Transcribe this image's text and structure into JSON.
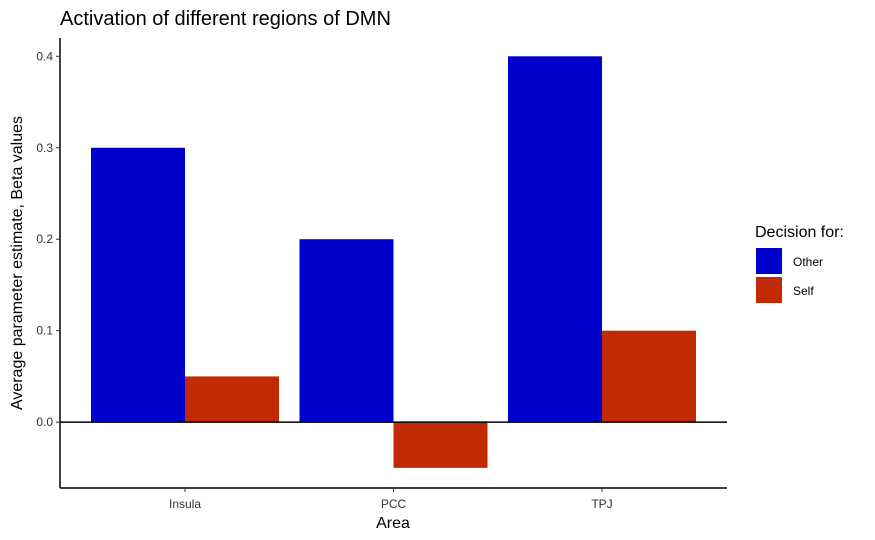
{
  "chart_data": {
    "type": "bar",
    "title": "Activation of different regions of DMN",
    "xlabel": "Area",
    "ylabel": "Average parameter estimate, Beta values",
    "categories": [
      "Insula",
      "PCC",
      "TPJ"
    ],
    "series": [
      {
        "name": "Other",
        "values": [
          0.3,
          0.2,
          0.4
        ]
      },
      {
        "name": "Self",
        "values": [
          0.05,
          -0.05,
          0.1
        ]
      }
    ],
    "ylim": [
      -0.072,
      0.42
    ],
    "yticks": [
      0.0,
      0.1,
      0.2,
      0.3,
      0.4
    ],
    "ytick_labels": [
      "0.0",
      "0.1",
      "0.2",
      "0.3",
      "0.4"
    ],
    "legend_title": "Decision for:",
    "legend_position": "right",
    "zero_line": true,
    "grid": false
  },
  "colors": {
    "Other": "#0000cd",
    "Self": "#c22a04"
  }
}
